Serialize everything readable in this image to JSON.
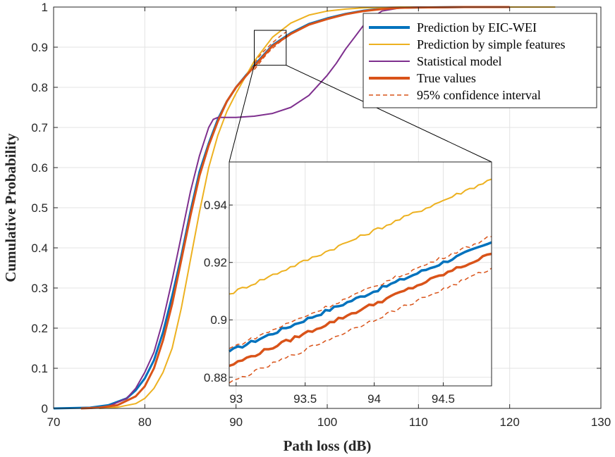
{
  "chart_data": {
    "type": "line",
    "xlabel": "Path loss (dB)",
    "ylabel": "Cumulative Probability",
    "xlim": [
      70,
      130
    ],
    "ylim": [
      0,
      1
    ],
    "xticks": [
      70,
      80,
      90,
      100,
      110,
      120,
      130
    ],
    "yticks": [
      0,
      0.1,
      0.2,
      0.3,
      0.4,
      0.5,
      0.6,
      0.7,
      0.8,
      0.9,
      1
    ],
    "ytick_labels": [
      "0",
      "0.1",
      "0.2",
      "0.3",
      "0.4",
      "0.5",
      "0.6",
      "0.7",
      "0.8",
      "0.9",
      "1"
    ],
    "grid": true,
    "legend_position": "top-right",
    "zoom_box": {
      "xlim": [
        92,
        95.5
      ],
      "ylim": [
        0.855,
        0.942
      ]
    },
    "series": [
      {
        "name": "Prediction by EIC-WEI",
        "color": "#0072BD",
        "style": "solid-thick",
        "x": [
          70,
          74,
          76,
          78,
          79,
          80,
          81,
          82,
          83,
          84,
          85,
          86,
          87,
          88,
          89,
          90,
          92,
          94,
          96,
          98,
          100,
          102,
          104,
          106,
          108,
          110,
          115,
          118
        ],
        "y": [
          0,
          0.002,
          0.008,
          0.025,
          0.045,
          0.075,
          0.12,
          0.19,
          0.28,
          0.38,
          0.49,
          0.59,
          0.66,
          0.72,
          0.765,
          0.8,
          0.855,
          0.905,
          0.935,
          0.958,
          0.972,
          0.983,
          0.991,
          0.996,
          0.998,
          0.999,
          1.0,
          1.0
        ]
      },
      {
        "name": "Prediction by simple features",
        "color": "#EDB120",
        "style": "solid",
        "x": [
          75,
          77,
          79,
          80,
          81,
          82,
          83,
          84,
          85,
          86,
          87,
          88,
          89,
          90,
          92,
          94,
          96,
          98,
          100,
          102,
          104,
          106,
          108,
          110,
          125
        ],
        "y": [
          0,
          0.003,
          0.012,
          0.025,
          0.05,
          0.09,
          0.15,
          0.25,
          0.37,
          0.49,
          0.6,
          0.68,
          0.74,
          0.785,
          0.865,
          0.925,
          0.96,
          0.98,
          0.99,
          0.995,
          0.998,
          0.999,
          1.0,
          1.0,
          1.0
        ]
      },
      {
        "name": "Statistical model",
        "color": "#7E2F8E",
        "style": "solid",
        "x": [
          74,
          76,
          78,
          79,
          80,
          81,
          82,
          83,
          84,
          85,
          86,
          87,
          87.5,
          88,
          89,
          90,
          92,
          94,
          96,
          98,
          100,
          101,
          102,
          103,
          104,
          105,
          106,
          108,
          110,
          115,
          120
        ],
        "y": [
          0,
          0.005,
          0.025,
          0.05,
          0.09,
          0.14,
          0.22,
          0.32,
          0.43,
          0.54,
          0.63,
          0.7,
          0.72,
          0.725,
          0.725,
          0.725,
          0.728,
          0.735,
          0.75,
          0.78,
          0.83,
          0.86,
          0.895,
          0.925,
          0.955,
          0.975,
          0.99,
          0.998,
          1.0,
          1.0,
          1.0
        ]
      },
      {
        "name": "True values",
        "color": "#D95319",
        "style": "solid-thick",
        "x": [
          73,
          75,
          77,
          79,
          80,
          81,
          82,
          83,
          84,
          85,
          86,
          87,
          88,
          89,
          90,
          92,
          94,
          96,
          98,
          100,
          102,
          104,
          106,
          108,
          110,
          115,
          120
        ],
        "y": [
          0,
          0.002,
          0.008,
          0.03,
          0.055,
          0.1,
          0.17,
          0.26,
          0.37,
          0.48,
          0.58,
          0.655,
          0.715,
          0.765,
          0.8,
          0.852,
          0.903,
          0.933,
          0.956,
          0.97,
          0.982,
          0.99,
          0.995,
          0.998,
          0.999,
          1.0,
          1.0
        ]
      },
      {
        "name": "95% confidence interval",
        "color": "#D95319",
        "style": "dashed",
        "x": [
          92,
          92.5,
          93,
          93.5,
          94,
          94.5,
          95,
          95.5
        ],
        "y_upper": [
          0.86,
          0.876,
          0.889,
          0.9,
          0.911,
          0.921,
          0.93,
          0.938
        ],
        "y_lower": [
          0.844,
          0.858,
          0.873,
          0.886,
          0.897,
          0.907,
          0.916,
          0.924
        ]
      }
    ],
    "inset": {
      "xlim": [
        92.95,
        94.85
      ],
      "ylim": [
        0.877,
        0.955
      ],
      "xticks": [
        93,
        93.5,
        94,
        94.5
      ],
      "xtick_labels": [
        "93",
        "93.5",
        "94",
        "94.5"
      ],
      "yticks": [
        0.88,
        0.9,
        0.92,
        0.94
      ],
      "ytick_labels": [
        "0.88",
        "0.9",
        "0.92",
        "0.94"
      ],
      "series": [
        {
          "name": "Prediction by EIC-WEI",
          "x": [
            92.95,
            94.85
          ],
          "y": [
            0.889,
            0.927
          ]
        },
        {
          "name": "Prediction by simple features",
          "x": [
            92.95,
            94.85
          ],
          "y": [
            0.909,
            0.949
          ]
        },
        {
          "name": "True values",
          "x": [
            92.95,
            94.85
          ],
          "y": [
            0.884,
            0.923
          ]
        },
        {
          "name": "95% upper",
          "x": [
            92.95,
            94.85
          ],
          "y": [
            0.89,
            0.929
          ]
        },
        {
          "name": "95% lower",
          "x": [
            92.95,
            94.85
          ],
          "y": [
            0.878,
            0.918
          ]
        }
      ]
    }
  }
}
